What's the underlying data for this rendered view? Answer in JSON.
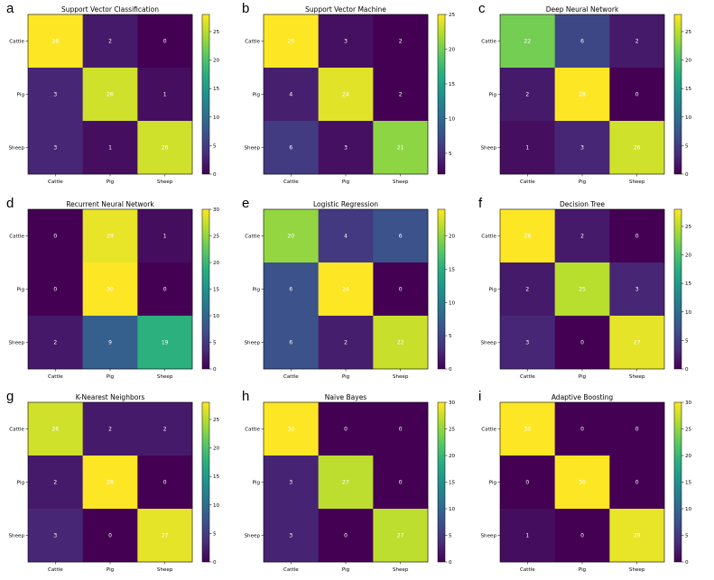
{
  "chart_data": [
    {
      "type": "heatmap",
      "panel": "a",
      "title": "Support Vector Classification",
      "x_categories": [
        "Cattle",
        "Pig",
        "Sheep"
      ],
      "y_categories": [
        "Cattle",
        "Pig",
        "Sheep"
      ],
      "matrix": [
        [
          28,
          2,
          0
        ],
        [
          3,
          26,
          1
        ],
        [
          3,
          1,
          26
        ]
      ],
      "colorbar": {
        "min": 0,
        "max": 28,
        "ticks": [
          0,
          5,
          10,
          15,
          20,
          25
        ]
      },
      "colormap": "viridis"
    },
    {
      "type": "heatmap",
      "panel": "b",
      "title": "Support Vector Machine",
      "x_categories": [
        "Cattle",
        "Pig",
        "Sheep"
      ],
      "y_categories": [
        "Cattle",
        "Pig",
        "Sheep"
      ],
      "matrix": [
        [
          25,
          3,
          2
        ],
        [
          4,
          24,
          2
        ],
        [
          6,
          3,
          21
        ]
      ],
      "colorbar": {
        "min": 2,
        "max": 25,
        "ticks": [
          5,
          10,
          15,
          20,
          25
        ]
      },
      "colormap": "viridis"
    },
    {
      "type": "heatmap",
      "panel": "c",
      "title": "Deep Neural Network",
      "x_categories": [
        "Cattle",
        "Pig",
        "Sheep"
      ],
      "y_categories": [
        "Cattle",
        "Pig",
        "Sheep"
      ],
      "matrix": [
        [
          22,
          6,
          2
        ],
        [
          2,
          28,
          0
        ],
        [
          1,
          3,
          26
        ]
      ],
      "colorbar": {
        "min": 0,
        "max": 28,
        "ticks": [
          0,
          5,
          10,
          15,
          20,
          25
        ]
      },
      "colormap": "viridis"
    },
    {
      "type": "heatmap",
      "panel": "d",
      "title": "Recurrent Neural Network",
      "x_categories": [
        "Cattle",
        "Pig",
        "Sheep"
      ],
      "y_categories": [
        "Cattle",
        "Pig",
        "Sheep"
      ],
      "matrix": [
        [
          0,
          29,
          1
        ],
        [
          0,
          30,
          0
        ],
        [
          2,
          9,
          19
        ]
      ],
      "colorbar": {
        "min": 0,
        "max": 30,
        "ticks": [
          0,
          5,
          10,
          15,
          20,
          25,
          30
        ]
      },
      "colormap": "viridis"
    },
    {
      "type": "heatmap",
      "panel": "e",
      "title": "Logistic Regression",
      "x_categories": [
        "Cattle",
        "Pig",
        "Sheep"
      ],
      "y_categories": [
        "Cattle",
        "Pig",
        "Sheep"
      ],
      "matrix": [
        [
          20,
          4,
          6
        ],
        [
          6,
          24,
          0
        ],
        [
          6,
          2,
          22
        ]
      ],
      "colorbar": {
        "min": 0,
        "max": 24,
        "ticks": [
          0,
          5,
          10,
          15,
          20
        ]
      },
      "colormap": "viridis"
    },
    {
      "type": "heatmap",
      "panel": "f",
      "title": "Decision Tree",
      "x_categories": [
        "Cattle",
        "Pig",
        "Sheep"
      ],
      "y_categories": [
        "Cattle",
        "Pig",
        "Sheep"
      ],
      "matrix": [
        [
          28,
          2,
          0
        ],
        [
          2,
          25,
          3
        ],
        [
          3,
          0,
          27
        ]
      ],
      "colorbar": {
        "min": 0,
        "max": 28,
        "ticks": [
          0,
          5,
          10,
          15,
          20,
          25
        ]
      },
      "colormap": "viridis"
    },
    {
      "type": "heatmap",
      "panel": "g",
      "title": "K-Nearest Neighbors",
      "x_categories": [
        "Cattle",
        "Pig",
        "Sheep"
      ],
      "y_categories": [
        "Cattle",
        "Pig",
        "Sheep"
      ],
      "matrix": [
        [
          26,
          2,
          2
        ],
        [
          2,
          28,
          0
        ],
        [
          3,
          0,
          27
        ]
      ],
      "colorbar": {
        "min": 0,
        "max": 28,
        "ticks": [
          0,
          5,
          10,
          15,
          20,
          25
        ]
      },
      "colormap": "viridis"
    },
    {
      "type": "heatmap",
      "panel": "h",
      "title": "Naive Bayes",
      "x_categories": [
        "Cattle",
        "Pig",
        "Sheep"
      ],
      "y_categories": [
        "Cattle",
        "Pig",
        "Sheep"
      ],
      "matrix": [
        [
          30,
          0,
          0
        ],
        [
          3,
          27,
          0
        ],
        [
          3,
          0,
          27
        ]
      ],
      "colorbar": {
        "min": 0,
        "max": 30,
        "ticks": [
          0,
          5,
          10,
          15,
          20,
          25,
          30
        ]
      },
      "colormap": "viridis"
    },
    {
      "type": "heatmap",
      "panel": "i",
      "title": "Adaptive Boosting",
      "x_categories": [
        "Cattle",
        "Pig",
        "Sheep"
      ],
      "y_categories": [
        "Cattle",
        "Pig",
        "Sheep"
      ],
      "matrix": [
        [
          30,
          0,
          0
        ],
        [
          0,
          30,
          0
        ],
        [
          1,
          0,
          29
        ]
      ],
      "colorbar": {
        "min": 0,
        "max": 30,
        "ticks": [
          0,
          5,
          10,
          15,
          20,
          25,
          30
        ]
      },
      "colormap": "viridis"
    }
  ]
}
